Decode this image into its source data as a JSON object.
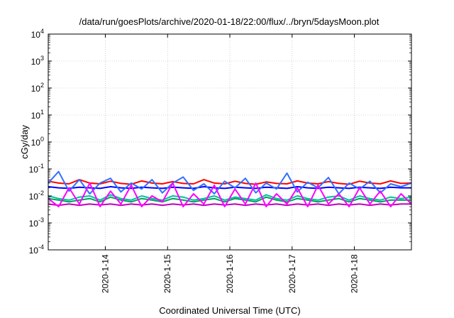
{
  "chart_data": {
    "type": "line",
    "title": "/data/run/goesPlots/archive/2020-01-18/22:00/flux/../bryn/5daysMoon.plot",
    "xlabel": "Coordinated Universal Time (UTC)",
    "ylabel": "cGy/day",
    "yscale": "log",
    "ylim": [
      0.0001,
      10000
    ],
    "y_ticks": [
      {
        "value": 0.0001,
        "base": "10",
        "exp": "-4"
      },
      {
        "value": 0.001,
        "base": "10",
        "exp": "-3"
      },
      {
        "value": 0.01,
        "base": "10",
        "exp": "-2"
      },
      {
        "value": 0.1,
        "base": "10",
        "exp": "-1"
      },
      {
        "value": 1,
        "base": "10",
        "exp": "0"
      },
      {
        "value": 10,
        "base": "10",
        "exp": "1"
      },
      {
        "value": 100,
        "base": "10",
        "exp": "2"
      },
      {
        "value": 1000,
        "base": "10",
        "exp": "3"
      },
      {
        "value": 10000,
        "base": "10",
        "exp": "4"
      }
    ],
    "xlim": [
      "2020-01-13 02:00",
      "2020-01-18 22:00"
    ],
    "x_ticks": [
      "2020-1-14",
      "2020-1-15",
      "2020-1-16",
      "2020-1-17",
      "2020-1-18"
    ],
    "grid": true,
    "x_dates": [
      "2020-01-13 02:00",
      "2020-01-13 06:00",
      "2020-01-13 10:00",
      "2020-01-13 14:00",
      "2020-01-13 18:00",
      "2020-01-13 22:00",
      "2020-01-14 02:00",
      "2020-01-14 06:00",
      "2020-01-14 10:00",
      "2020-01-14 14:00",
      "2020-01-14 18:00",
      "2020-01-14 22:00",
      "2020-01-15 02:00",
      "2020-01-15 06:00",
      "2020-01-15 10:00",
      "2020-01-15 14:00",
      "2020-01-15 18:00",
      "2020-01-15 22:00",
      "2020-01-16 02:00",
      "2020-01-16 06:00",
      "2020-01-16 10:00",
      "2020-01-16 14:00",
      "2020-01-16 18:00",
      "2020-01-16 22:00",
      "2020-01-17 02:00",
      "2020-01-17 06:00",
      "2020-01-17 10:00",
      "2020-01-17 14:00",
      "2020-01-17 18:00",
      "2020-01-17 22:00",
      "2020-01-18 02:00",
      "2020-01-18 06:00",
      "2020-01-18 10:00",
      "2020-01-18 14:00",
      "2020-01-18 18:00",
      "2020-01-18 22:00"
    ],
    "series": [
      {
        "color": "#ff0000",
        "values": [
          0.035,
          0.03,
          0.028,
          0.04,
          0.03,
          0.028,
          0.035,
          0.029,
          0.027,
          0.036,
          0.03,
          0.028,
          0.034,
          0.029,
          0.028,
          0.04,
          0.03,
          0.028,
          0.035,
          0.029,
          0.027,
          0.033,
          0.029,
          0.028,
          0.036,
          0.03,
          0.028,
          0.034,
          0.029,
          0.027,
          0.035,
          0.03,
          0.028,
          0.036,
          0.029,
          0.03
        ]
      },
      {
        "color": "#0000ff",
        "values": [
          0.022,
          0.02,
          0.019,
          0.021,
          0.02,
          0.019,
          0.022,
          0.02,
          0.019,
          0.021,
          0.02,
          0.019,
          0.021,
          0.02,
          0.019,
          0.022,
          0.02,
          0.019,
          0.021,
          0.02,
          0.019,
          0.021,
          0.02,
          0.019,
          0.022,
          0.02,
          0.019,
          0.021,
          0.02,
          0.019,
          0.021,
          0.02,
          0.019,
          0.021,
          0.02,
          0.02
        ]
      },
      {
        "color": "#3070ff",
        "values": [
          0.03,
          0.08,
          0.015,
          0.04,
          0.012,
          0.03,
          0.045,
          0.014,
          0.03,
          0.018,
          0.04,
          0.013,
          0.03,
          0.05,
          0.016,
          0.028,
          0.012,
          0.035,
          0.02,
          0.045,
          0.013,
          0.03,
          0.018,
          0.07,
          0.014,
          0.032,
          0.02,
          0.048,
          0.012,
          0.03,
          0.018,
          0.035,
          0.013,
          0.028,
          0.022,
          0.03
        ]
      },
      {
        "color": "#00a060",
        "values": [
          0.008,
          0.007,
          0.006,
          0.007,
          0.008,
          0.006,
          0.009,
          0.007,
          0.006,
          0.008,
          0.007,
          0.006,
          0.008,
          0.007,
          0.006,
          0.007,
          0.008,
          0.006,
          0.008,
          0.007,
          0.006,
          0.009,
          0.007,
          0.006,
          0.008,
          0.007,
          0.006,
          0.007,
          0.008,
          0.006,
          0.008,
          0.007,
          0.006,
          0.007,
          0.007,
          0.007
        ]
      },
      {
        "color": "#00c0a0",
        "values": [
          0.01,
          0.008,
          0.007,
          0.009,
          0.01,
          0.007,
          0.011,
          0.008,
          0.007,
          0.01,
          0.008,
          0.007,
          0.01,
          0.009,
          0.007,
          0.008,
          0.01,
          0.007,
          0.009,
          0.008,
          0.007,
          0.011,
          0.008,
          0.007,
          0.01,
          0.008,
          0.007,
          0.009,
          0.01,
          0.007,
          0.01,
          0.008,
          0.007,
          0.009,
          0.008,
          0.009
        ]
      },
      {
        "color": "#c000c0",
        "values": [
          0.005,
          0.0045,
          0.005,
          0.0045,
          0.005,
          0.0046,
          0.005,
          0.0045,
          0.005,
          0.0046,
          0.005,
          0.0045,
          0.005,
          0.0046,
          0.005,
          0.0045,
          0.005,
          0.0046,
          0.005,
          0.0045,
          0.005,
          0.0046,
          0.005,
          0.0045,
          0.005,
          0.0046,
          0.005,
          0.0045,
          0.005,
          0.0046,
          0.005,
          0.0045,
          0.005,
          0.0046,
          0.005,
          0.005
        ]
      },
      {
        "color": "#ff00ff",
        "values": [
          0.008,
          0.004,
          0.02,
          0.005,
          0.03,
          0.004,
          0.015,
          0.005,
          0.025,
          0.004,
          0.01,
          0.006,
          0.03,
          0.004,
          0.012,
          0.005,
          0.025,
          0.004,
          0.018,
          0.005,
          0.03,
          0.004,
          0.012,
          0.005,
          0.02,
          0.004,
          0.025,
          0.005,
          0.012,
          0.004,
          0.02,
          0.005,
          0.015,
          0.004,
          0.012,
          0.005
        ]
      }
    ]
  }
}
